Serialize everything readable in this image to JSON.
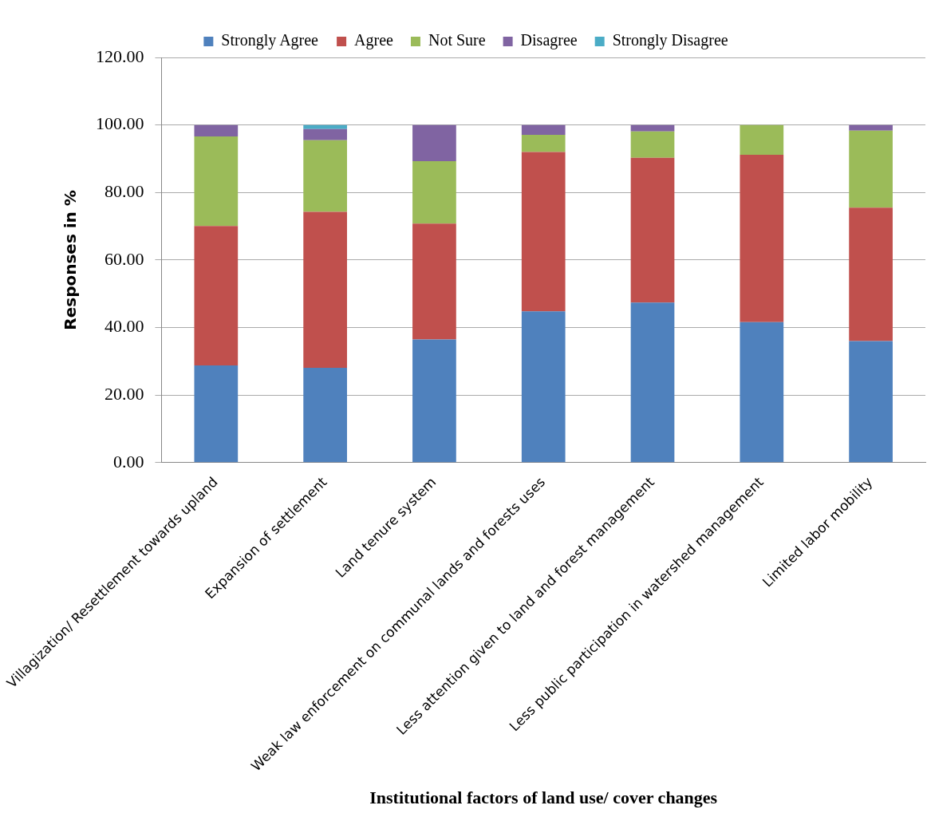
{
  "chart_data": {
    "type": "bar",
    "stacked": true,
    "xlabel": "Institutional factors of land use/ cover changes",
    "ylabel": "Responses in %",
    "categories": [
      "Villagization/ Resettlement towards upland",
      "Expansion of settlement",
      "Land tenure system",
      "Weak law enforcement on communal lands and forests uses",
      "Less attention given to land and forest management",
      "Less public participation in watershed management",
      "Limited labor mobility"
    ],
    "series": [
      {
        "name": "Strongly Agree",
        "color": "#4f81bd",
        "values": [
          28.8,
          28.1,
          36.5,
          44.8,
          47.4,
          41.6,
          36.0
        ]
      },
      {
        "name": "Agree",
        "color": "#c0504d",
        "values": [
          41.3,
          46.2,
          34.3,
          47.2,
          42.9,
          49.6,
          39.5
        ]
      },
      {
        "name": "Not Sure",
        "color": "#9bbb59",
        "values": [
          26.5,
          21.2,
          18.5,
          5.1,
          7.8,
          8.8,
          22.8
        ]
      },
      {
        "name": "Disagree",
        "color": "#8064a2",
        "values": [
          3.4,
          3.3,
          10.7,
          2.9,
          1.9,
          0,
          1.7
        ]
      },
      {
        "name": "Strongly Disagree",
        "color": "#4bacc6",
        "values": [
          0,
          1.2,
          0,
          0,
          0,
          0,
          0
        ]
      }
    ],
    "ylim": [
      0,
      120
    ],
    "yticks": [
      {
        "value": 0,
        "label": "0.00"
      },
      {
        "value": 20,
        "label": "20.00"
      },
      {
        "value": 40,
        "label": "40.00"
      },
      {
        "value": 60,
        "label": "60.00"
      },
      {
        "value": 80,
        "label": "80.00"
      },
      {
        "value": 100,
        "label": "100.00"
      },
      {
        "value": 120,
        "label": "120.00"
      }
    ],
    "grid": "y",
    "legend": "top"
  }
}
